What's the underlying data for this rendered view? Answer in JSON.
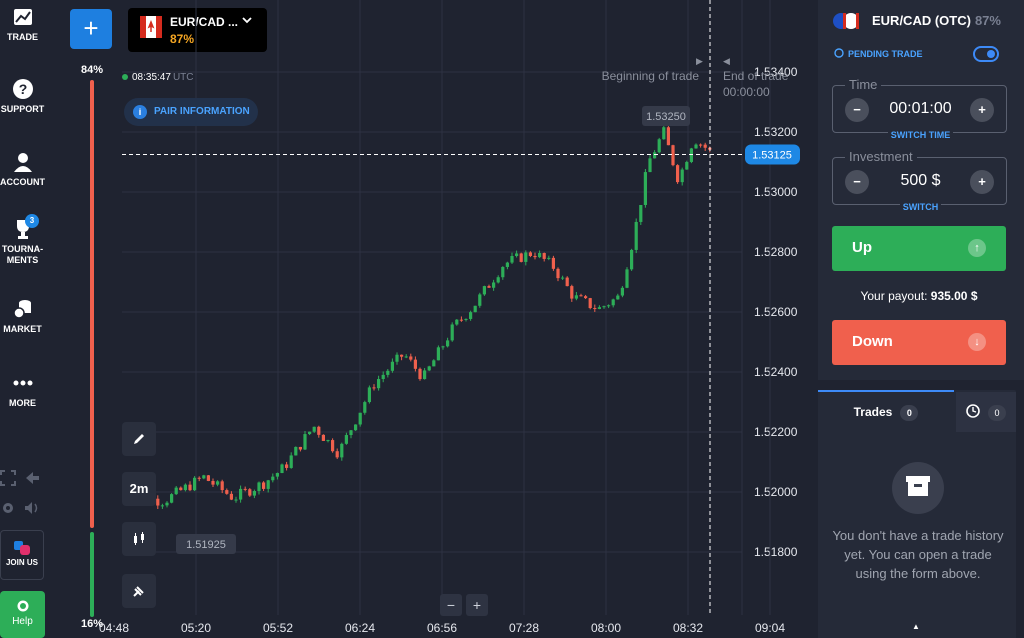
{
  "sidebar": {
    "items": [
      {
        "label": "TRADE",
        "icon": "chart-icon"
      },
      {
        "label": "SUPPORT",
        "icon": "question-icon"
      },
      {
        "label": "ACCOUNT",
        "icon": "user-icon"
      },
      {
        "label": "TOURNA-\nMENTS",
        "icon": "trophy-icon",
        "badge": "3"
      },
      {
        "label": "MARKET",
        "icon": "coins-icon"
      },
      {
        "label": "MORE",
        "icon": "dots-icon"
      }
    ],
    "join_us": "JOIN US",
    "help": "Help"
  },
  "sentiment": {
    "up_pct": "84%",
    "down_pct": "16%"
  },
  "asset": {
    "name": "EUR/CAD ...",
    "payout_pct": "87%"
  },
  "clock": {
    "time": "08:35:47",
    "tz": "UTC"
  },
  "pair_info": "PAIR INFORMATION",
  "tools": {
    "timeframe": "2m"
  },
  "chart": {
    "begin_label": "Beginning of trade",
    "end_label": "End of trade",
    "end_time": "00:00:00",
    "current_price": "1.53125",
    "high_marker": "1.53250",
    "low_marker": "1.51925",
    "price_ticks": [
      "1.53400",
      "1.53200",
      "1.53000",
      "1.52800",
      "1.52600",
      "1.52400",
      "1.52200",
      "1.52000",
      "1.51800"
    ],
    "time_ticks": [
      "04:48",
      "05:20",
      "05:52",
      "06:24",
      "06:56",
      "07:28",
      "08:00",
      "08:32",
      "09:04"
    ]
  },
  "panel": {
    "asset_name": "EUR/CAD (OTC)",
    "asset_pct": "87%",
    "pending": "PENDING TRADE",
    "time_label": "Time",
    "time_value": "00:01:00",
    "switch_time": "SWITCH TIME",
    "investment_label": "Investment",
    "investment_value": "500 $",
    "switch": "SWITCH",
    "up": "Up",
    "down": "Down",
    "payout_label": "Your payout:",
    "payout_value": "935.00 $"
  },
  "trades": {
    "tab_label": "Trades",
    "tab_count": "0",
    "history_count": "0",
    "empty_text": "You don't have a trade history yet. You can open a trade using the form above."
  },
  "colors": {
    "up": "#2dae58",
    "down": "#f0604d",
    "accent": "#1e7fe0"
  }
}
